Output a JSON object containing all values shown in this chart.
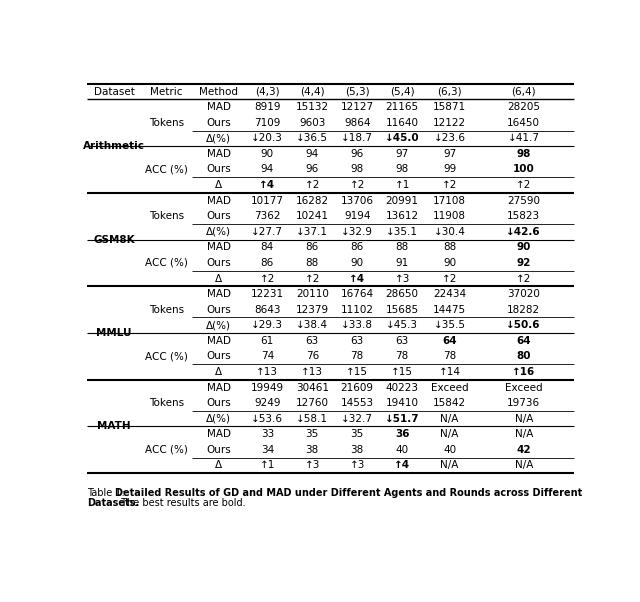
{
  "header": [
    "Dataset",
    "Metric",
    "Method",
    "(4,3)",
    "(4,4)",
    "(5,3)",
    "(5,4)",
    "(6,3)",
    "(6,4)"
  ],
  "sections": [
    {
      "dataset": "Arithmetic",
      "rows": [
        {
          "method": "MAD",
          "vals": [
            "8919",
            "15132",
            "12127",
            "21165",
            "15871",
            "28205"
          ],
          "bold": [
            false,
            false,
            false,
            false,
            false,
            false
          ]
        },
        {
          "method": "Ours",
          "vals": [
            "7109",
            "9603",
            "9864",
            "11640",
            "12122",
            "16450"
          ],
          "bold": [
            false,
            false,
            false,
            false,
            false,
            false
          ]
        },
        {
          "method": "Δ(%)",
          "vals": [
            "↓20.3",
            "↓36.5",
            "↓18.7",
            "↓45.0",
            "↓23.6",
            "↓41.7"
          ],
          "bold": [
            false,
            false,
            false,
            true,
            false,
            false
          ]
        },
        {
          "method": "MAD",
          "vals": [
            "90",
            "94",
            "96",
            "97",
            "97",
            "98"
          ],
          "bold": [
            false,
            false,
            false,
            false,
            false,
            true
          ]
        },
        {
          "method": "Ours",
          "vals": [
            "94",
            "96",
            "98",
            "98",
            "99",
            "100"
          ],
          "bold": [
            false,
            false,
            false,
            false,
            false,
            true
          ]
        },
        {
          "method": "Δ",
          "vals": [
            "↑4",
            "↑2",
            "↑2",
            "↑1",
            "↑2",
            "↑2"
          ],
          "bold": [
            true,
            false,
            false,
            false,
            false,
            false
          ]
        }
      ],
      "metrics": [
        "Tokens",
        "ACC (%)"
      ]
    },
    {
      "dataset": "GSM8K",
      "rows": [
        {
          "method": "MAD",
          "vals": [
            "10177",
            "16282",
            "13706",
            "20991",
            "17108",
            "27590"
          ],
          "bold": [
            false,
            false,
            false,
            false,
            false,
            false
          ]
        },
        {
          "method": "Ours",
          "vals": [
            "7362",
            "10241",
            "9194",
            "13612",
            "11908",
            "15823"
          ],
          "bold": [
            false,
            false,
            false,
            false,
            false,
            false
          ]
        },
        {
          "method": "Δ(%)",
          "vals": [
            "↓27.7",
            "↓37.1",
            "↓32.9",
            "↓35.1",
            "↓30.4",
            "↓42.6"
          ],
          "bold": [
            false,
            false,
            false,
            false,
            false,
            true
          ]
        },
        {
          "method": "MAD",
          "vals": [
            "84",
            "86",
            "86",
            "88",
            "88",
            "90"
          ],
          "bold": [
            false,
            false,
            false,
            false,
            false,
            true
          ]
        },
        {
          "method": "Ours",
          "vals": [
            "86",
            "88",
            "90",
            "91",
            "90",
            "92"
          ],
          "bold": [
            false,
            false,
            false,
            false,
            false,
            true
          ]
        },
        {
          "method": "Δ",
          "vals": [
            "↑2",
            "↑2",
            "↑4",
            "↑3",
            "↑2",
            "↑2"
          ],
          "bold": [
            false,
            false,
            true,
            false,
            false,
            false
          ]
        }
      ],
      "metrics": [
        "Tokens",
        "ACC (%)"
      ]
    },
    {
      "dataset": "MMLU",
      "rows": [
        {
          "method": "MAD",
          "vals": [
            "12231",
            "20110",
            "16764",
            "28650",
            "22434",
            "37020"
          ],
          "bold": [
            false,
            false,
            false,
            false,
            false,
            false
          ]
        },
        {
          "method": "Ours",
          "vals": [
            "8643",
            "12379",
            "11102",
            "15685",
            "14475",
            "18282"
          ],
          "bold": [
            false,
            false,
            false,
            false,
            false,
            false
          ]
        },
        {
          "method": "Δ(%)",
          "vals": [
            "↓29.3",
            "↓38.4",
            "↓33.8",
            "↓45.3",
            "↓35.5",
            "↓50.6"
          ],
          "bold": [
            false,
            false,
            false,
            false,
            false,
            true
          ]
        },
        {
          "method": "MAD",
          "vals": [
            "61",
            "63",
            "63",
            "63",
            "64",
            "64"
          ],
          "bold": [
            false,
            false,
            false,
            false,
            true,
            true
          ]
        },
        {
          "method": "Ours",
          "vals": [
            "74",
            "76",
            "78",
            "78",
            "78",
            "80"
          ],
          "bold": [
            false,
            false,
            false,
            false,
            false,
            true
          ]
        },
        {
          "method": "Δ",
          "vals": [
            "↑13",
            "↑13",
            "↑15",
            "↑15",
            "↑14",
            "↑16"
          ],
          "bold": [
            false,
            false,
            false,
            false,
            false,
            true
          ]
        }
      ],
      "metrics": [
        "Tokens",
        "ACC (%)"
      ]
    },
    {
      "dataset": "MATH",
      "rows": [
        {
          "method": "MAD",
          "vals": [
            "19949",
            "30461",
            "21609",
            "40223",
            "Exceed",
            "Exceed"
          ],
          "bold": [
            false,
            false,
            false,
            false,
            false,
            false
          ]
        },
        {
          "method": "Ours",
          "vals": [
            "9249",
            "12760",
            "14553",
            "19410",
            "15842",
            "19736"
          ],
          "bold": [
            false,
            false,
            false,
            false,
            false,
            false
          ]
        },
        {
          "method": "Δ(%)",
          "vals": [
            "↓53.6",
            "↓58.1",
            "↓32.7",
            "↓51.7",
            "N/A",
            "N/A"
          ],
          "bold": [
            false,
            false,
            false,
            true,
            false,
            false
          ]
        },
        {
          "method": "MAD",
          "vals": [
            "33",
            "35",
            "35",
            "36",
            "N/A",
            "N/A"
          ],
          "bold": [
            false,
            false,
            false,
            true,
            false,
            false
          ]
        },
        {
          "method": "Ours",
          "vals": [
            "34",
            "38",
            "38",
            "40",
            "40",
            "42"
          ],
          "bold": [
            false,
            false,
            false,
            false,
            false,
            true
          ]
        },
        {
          "method": "Δ",
          "vals": [
            "↑1",
            "↑3",
            "↑3",
            "↑4",
            "N/A",
            "N/A"
          ],
          "bold": [
            false,
            false,
            false,
            true,
            false,
            false
          ]
        }
      ],
      "metrics": [
        "Tokens",
        "ACC (%)"
      ]
    }
  ],
  "fig_width": 6.4,
  "fig_height": 6.02,
  "fontsize": 7.5,
  "caption_fontsize": 7.0
}
